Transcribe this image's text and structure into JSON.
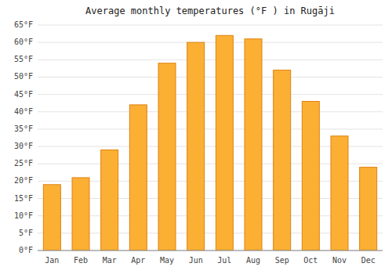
{
  "chart_data": {
    "type": "bar",
    "title": "Average monthly temperatures (°F ) in Rugāji",
    "categories": [
      "Jan",
      "Feb",
      "Mar",
      "Apr",
      "May",
      "Jun",
      "Jul",
      "Aug",
      "Sep",
      "Oct",
      "Nov",
      "Dec"
    ],
    "values": [
      19,
      21,
      29,
      42,
      54,
      60,
      62,
      61,
      52,
      43,
      33,
      24
    ],
    "color": "#FBB034",
    "ylim": [
      0,
      65
    ],
    "yticks": [
      {
        "value": 0,
        "label": "0°F"
      },
      {
        "value": 5,
        "label": "5°F"
      },
      {
        "value": 10,
        "label": "10°F"
      },
      {
        "value": 15,
        "label": "15°F"
      },
      {
        "value": 20,
        "label": "20°F"
      },
      {
        "value": 25,
        "label": "25°F"
      },
      {
        "value": 30,
        "label": "30°F"
      },
      {
        "value": 35,
        "label": "35°F"
      },
      {
        "value": 40,
        "label": "40°F"
      },
      {
        "value": 45,
        "label": "45°F"
      },
      {
        "value": 50,
        "label": "50°F"
      },
      {
        "value": 55,
        "label": "55°F"
      },
      {
        "value": 60,
        "label": "60°F"
      },
      {
        "value": 65,
        "label": "65°F"
      }
    ],
    "grid": true
  }
}
